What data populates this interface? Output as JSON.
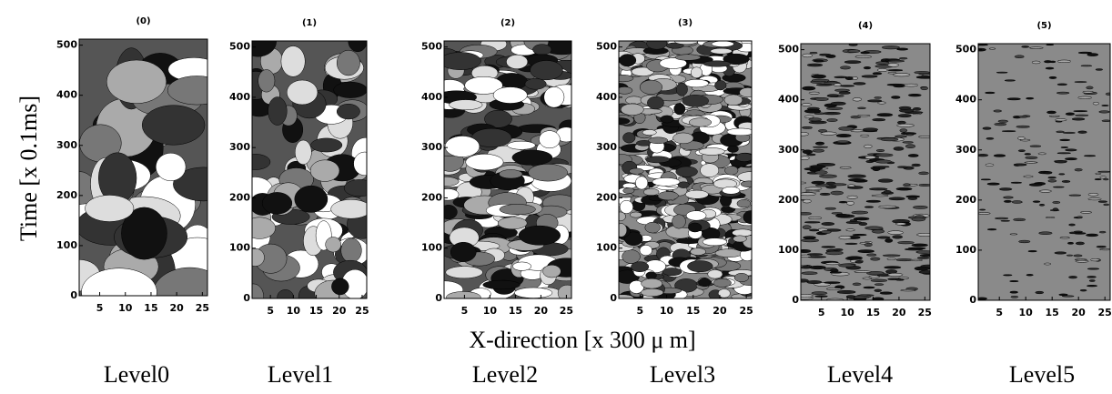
{
  "ylabel": "Time [x 0.1ms]",
  "xlabel": "X-direction [x 300 μ m]",
  "chart_data": [
    {
      "type": "contour",
      "title": "(0)",
      "caption": "Level0",
      "xlim": [
        1,
        26
      ],
      "ylim": [
        0,
        512
      ],
      "xticks": [
        5,
        10,
        15,
        20,
        25
      ],
      "yticks": [
        0,
        100,
        200,
        300,
        400,
        500
      ]
    },
    {
      "type": "contour",
      "title": "(1)",
      "caption": "Level1",
      "xlim": [
        1,
        26
      ],
      "ylim": [
        0,
        512
      ],
      "xticks": [
        5,
        10,
        15,
        20,
        25
      ],
      "yticks": [
        0,
        100,
        200,
        300,
        400,
        500
      ]
    },
    {
      "type": "contour",
      "title": "(2)",
      "caption": "Level2",
      "xlim": [
        1,
        26
      ],
      "ylim": [
        0,
        512
      ],
      "xticks": [
        5,
        10,
        15,
        20,
        25
      ],
      "yticks": [
        0,
        100,
        200,
        300,
        400,
        500
      ]
    },
    {
      "type": "contour",
      "title": "(3)",
      "caption": "Level3",
      "xlim": [
        1,
        26
      ],
      "ylim": [
        0,
        512
      ],
      "xticks": [
        5,
        10,
        15,
        20,
        25
      ],
      "yticks": [
        0,
        100,
        200,
        300,
        400,
        500
      ]
    },
    {
      "type": "contour",
      "title": "(4)",
      "caption": "Level4",
      "xlim": [
        1,
        26
      ],
      "ylim": [
        0,
        512
      ],
      "xticks": [
        5,
        10,
        15,
        20,
        25
      ],
      "yticks": [
        0,
        100,
        200,
        300,
        400,
        500
      ]
    },
    {
      "type": "contour",
      "title": "(5)",
      "caption": "Level5",
      "xlim": [
        1,
        26
      ],
      "ylim": [
        0,
        512
      ],
      "xticks": [
        5,
        10,
        15,
        20,
        25
      ],
      "yticks": [
        0,
        100,
        200,
        300,
        400,
        500
      ]
    }
  ]
}
